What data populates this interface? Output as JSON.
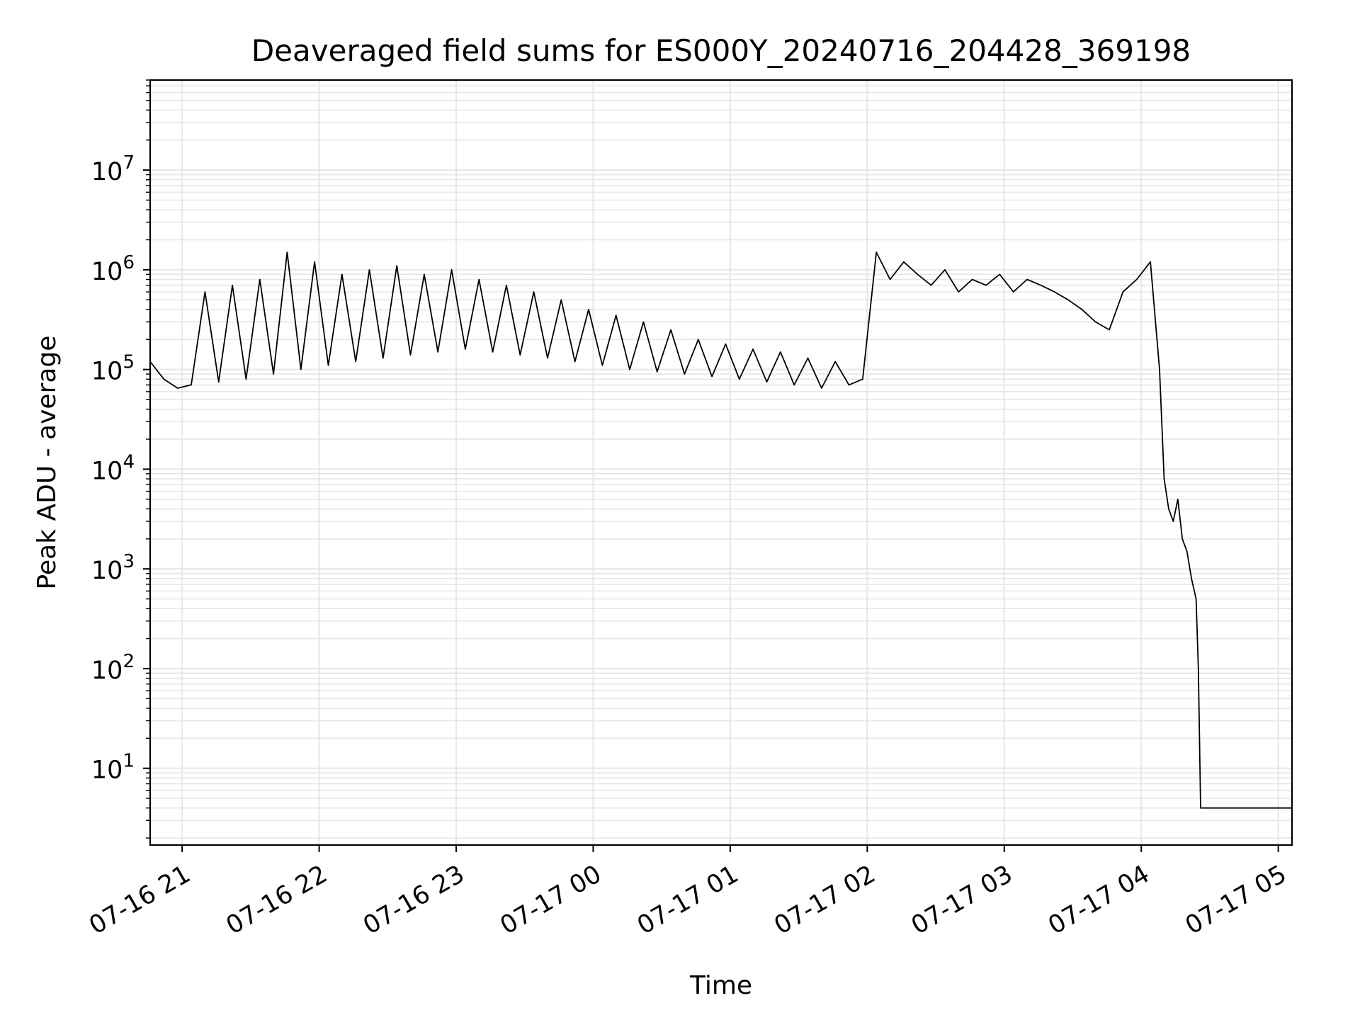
{
  "chart_data": {
    "type": "line",
    "title": "Deaveraged field sums for ES000Y_20240716_204428_369198",
    "xlabel": "Time",
    "ylabel": "Peak ADU - average",
    "yscale": "log",
    "xlim": [
      "2024-07-16 20:46",
      "2024-07-17 05:06"
    ],
    "ylim": [
      1.7,
      80000000
    ],
    "grid": true,
    "x_tick_labels": [
      "07-16 21",
      "07-16 22",
      "07-16 23",
      "07-17 00",
      "07-17 01",
      "07-17 02",
      "07-17 03",
      "07-17 04",
      "07-17 05"
    ],
    "y_tick_labels": [
      {
        "value": 10,
        "base": "10",
        "exp": "1"
      },
      {
        "value": 100,
        "base": "10",
        "exp": "2"
      },
      {
        "value": 1000,
        "base": "10",
        "exp": "3"
      },
      {
        "value": 10000,
        "base": "10",
        "exp": "4"
      },
      {
        "value": 100000,
        "base": "10",
        "exp": "5"
      },
      {
        "value": 1000000,
        "base": "10",
        "exp": "6"
      },
      {
        "value": 10000000,
        "base": "10",
        "exp": "7"
      }
    ],
    "line_color": "#000000",
    "grid_color": "#e6e6e6",
    "series": [
      {
        "x": [
          "2024-07-16 20:46",
          "2024-07-16 20:52",
          "2024-07-16 20:58",
          "2024-07-16 21:04",
          "2024-07-16 21:10",
          "2024-07-16 21:16",
          "2024-07-16 21:22",
          "2024-07-16 21:28",
          "2024-07-16 21:34",
          "2024-07-16 21:40",
          "2024-07-16 21:46",
          "2024-07-16 21:52",
          "2024-07-16 21:58",
          "2024-07-16 22:04",
          "2024-07-16 22:10",
          "2024-07-16 22:16",
          "2024-07-16 22:22",
          "2024-07-16 22:28",
          "2024-07-16 22:34",
          "2024-07-16 22:40",
          "2024-07-16 22:46",
          "2024-07-16 22:52",
          "2024-07-16 22:58",
          "2024-07-16 23:04",
          "2024-07-16 23:10",
          "2024-07-16 23:16",
          "2024-07-16 23:22",
          "2024-07-16 23:28",
          "2024-07-16 23:34",
          "2024-07-16 23:40",
          "2024-07-16 23:46",
          "2024-07-16 23:52",
          "2024-07-16 23:58",
          "2024-07-17 00:04",
          "2024-07-17 00:10",
          "2024-07-17 00:16",
          "2024-07-17 00:22",
          "2024-07-17 00:28",
          "2024-07-17 00:34",
          "2024-07-17 00:40",
          "2024-07-17 00:46",
          "2024-07-17 00:52",
          "2024-07-17 00:58",
          "2024-07-17 01:04",
          "2024-07-17 01:10",
          "2024-07-17 01:16",
          "2024-07-17 01:22",
          "2024-07-17 01:28",
          "2024-07-17 01:34",
          "2024-07-17 01:40",
          "2024-07-17 01:46",
          "2024-07-17 01:52",
          "2024-07-17 01:58",
          "2024-07-17 02:04",
          "2024-07-17 02:10",
          "2024-07-17 02:16",
          "2024-07-17 02:22",
          "2024-07-17 02:28",
          "2024-07-17 02:34",
          "2024-07-17 02:40",
          "2024-07-17 02:46",
          "2024-07-17 02:52",
          "2024-07-17 02:58",
          "2024-07-17 03:04",
          "2024-07-17 03:10",
          "2024-07-17 03:16",
          "2024-07-17 03:22",
          "2024-07-17 03:28",
          "2024-07-17 03:34",
          "2024-07-17 03:40",
          "2024-07-17 03:46",
          "2024-07-17 03:52",
          "2024-07-17 03:58",
          "2024-07-17 04:04",
          "2024-07-17 04:08",
          "2024-07-17 04:10",
          "2024-07-17 04:12",
          "2024-07-17 04:14",
          "2024-07-17 04:16",
          "2024-07-17 04:18",
          "2024-07-17 04:20",
          "2024-07-17 04:22",
          "2024-07-17 04:24",
          "2024-07-17 04:25",
          "2024-07-17 04:26",
          "2024-07-17 04:28",
          "2024-07-17 04:34",
          "2024-07-17 04:40",
          "2024-07-17 04:46",
          "2024-07-17 04:52",
          "2024-07-17 04:58",
          "2024-07-17 05:06"
        ],
        "y": [
          120000,
          80000,
          65000,
          70000,
          600000,
          75000,
          700000,
          80000,
          800000,
          90000,
          1500000,
          100000,
          1200000,
          110000,
          900000,
          120000,
          1000000,
          130000,
          1100000,
          140000,
          900000,
          150000,
          1000000,
          160000,
          800000,
          150000,
          700000,
          140000,
          600000,
          130000,
          500000,
          120000,
          400000,
          110000,
          350000,
          100000,
          300000,
          95000,
          250000,
          90000,
          200000,
          85000,
          180000,
          80000,
          160000,
          75000,
          150000,
          70000,
          130000,
          65000,
          120000,
          70000,
          80000,
          1500000,
          800000,
          1200000,
          900000,
          700000,
          1000000,
          600000,
          800000,
          700000,
          900000,
          600000,
          800000,
          700000,
          600000,
          500000,
          400000,
          300000,
          250000,
          600000,
          800000,
          1200000,
          100000,
          8000,
          4000,
          3000,
          5000,
          2000,
          1500,
          800,
          500,
          100,
          4,
          4,
          4,
          4,
          4,
          4,
          4,
          4
        ]
      }
    ],
    "annotations": []
  }
}
